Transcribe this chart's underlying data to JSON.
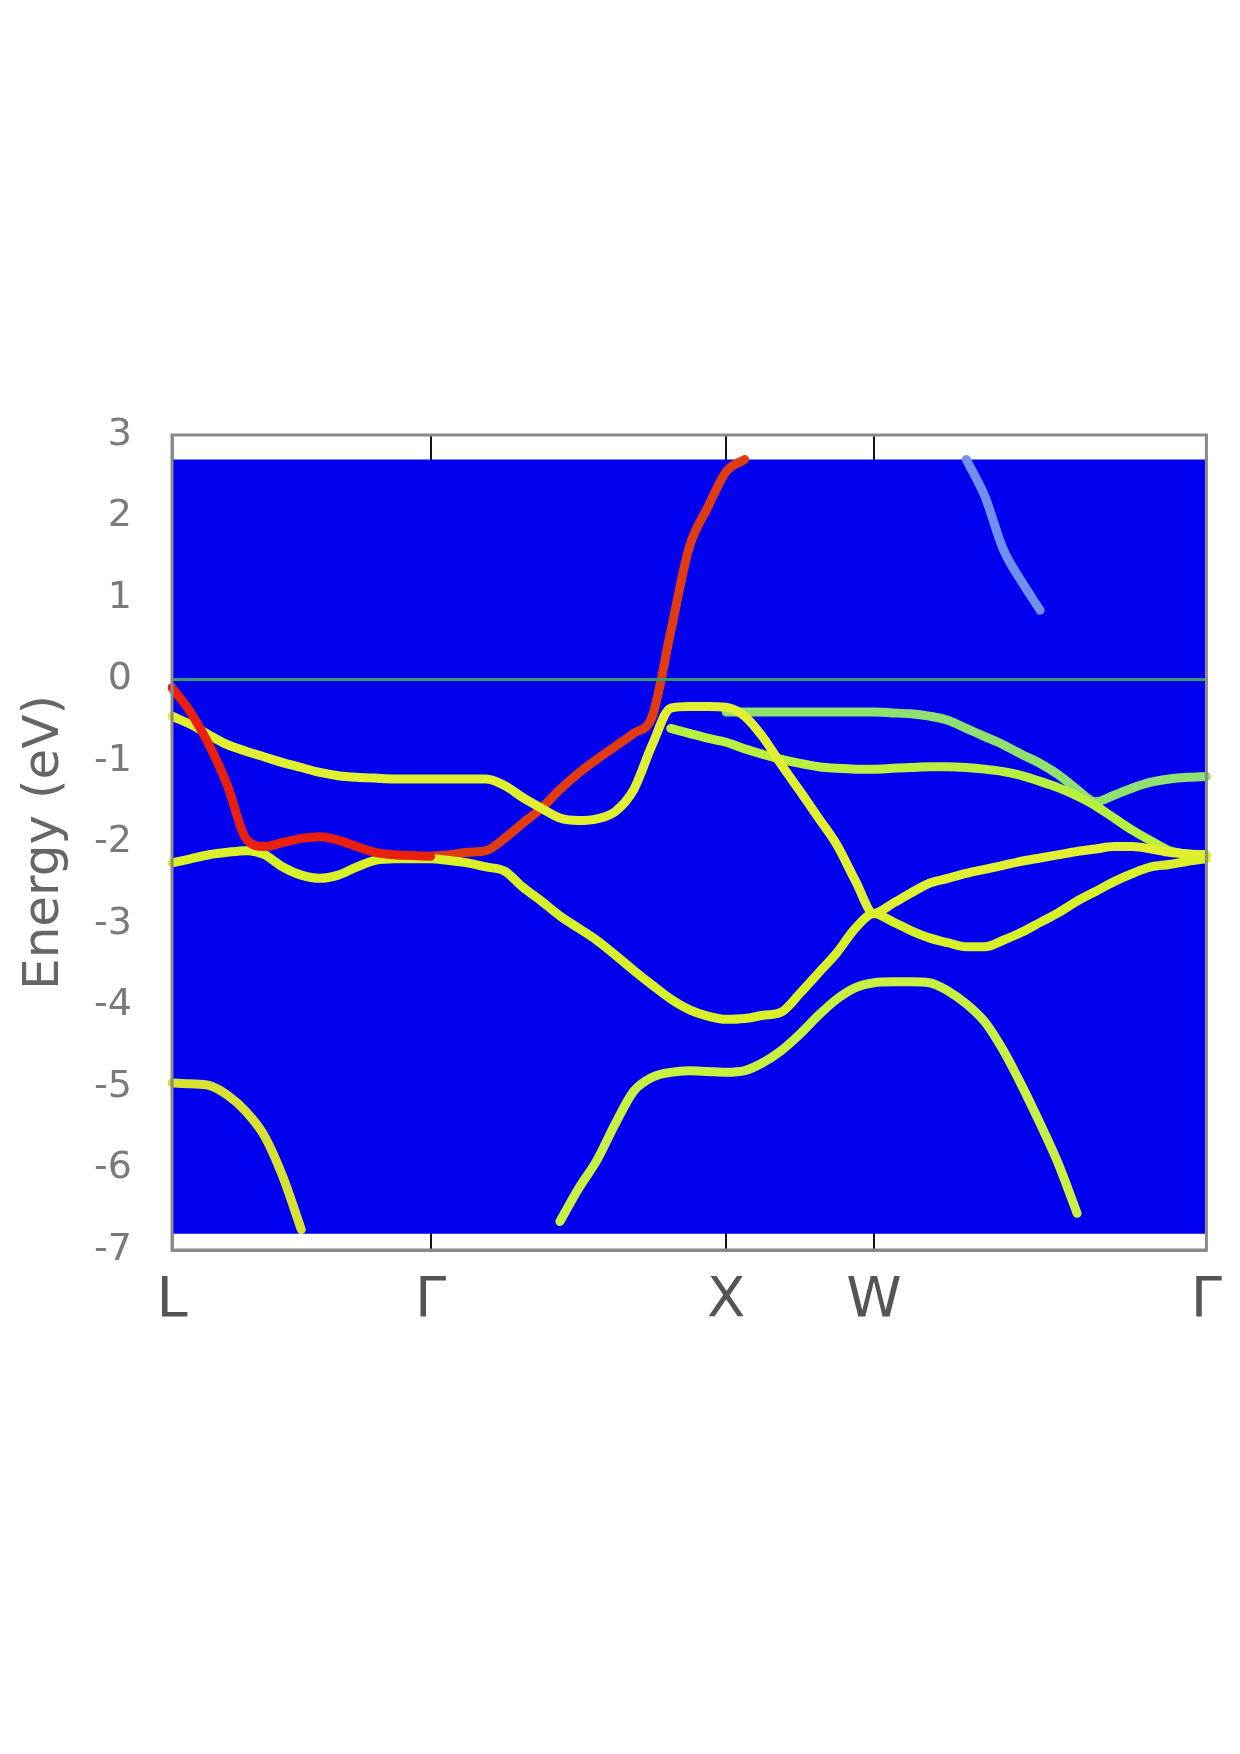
{
  "chart_data": {
    "type": "line",
    "ylabel": "Energy (eV)",
    "categories": [
      "L",
      null,
      null,
      null,
      null,
      null,
      null,
      null,
      null,
      null,
      null,
      null,
      null,
      null,
      "Γ",
      null,
      null,
      null,
      null,
      null,
      null,
      null,
      null,
      null,
      null,
      null,
      null,
      null,
      null,
      null,
      "X",
      null,
      null,
      null,
      null,
      null,
      null,
      null,
      "W",
      null,
      null,
      null,
      null,
      null,
      null,
      null,
      null,
      null,
      null,
      null,
      null,
      null,
      null,
      null,
      null,
      null,
      "Γ"
    ],
    "ylim": [
      -7,
      3
    ],
    "yticks": [
      -7,
      -6,
      -5,
      -4,
      -3,
      -2,
      -1,
      0,
      1,
      2,
      3
    ],
    "grid": "x",
    "marker": "none",
    "bands": [
      {
        "axis": "y",
        "from": -6.8,
        "to": 2.7,
        "color": "#0000ee"
      }
    ],
    "ref_lines": [
      {
        "axis": "y",
        "value": 0,
        "color": "#3a9a6a"
      }
    ],
    "series": [
      {
        "color": "#e8200c",
        "values": [
          -0.1,
          -0.4,
          -0.8,
          -1.3,
          -1.95,
          -2.05,
          -2.0,
          -1.95,
          -1.93,
          -1.97,
          -2.05,
          -2.12,
          -2.15,
          -2.16,
          -2.17,
          null,
          null,
          null,
          null,
          null,
          null,
          null,
          null,
          null,
          null,
          null,
          null,
          null,
          null,
          null,
          null,
          null,
          null,
          null,
          null,
          null,
          null,
          null,
          null,
          null,
          null,
          null,
          null,
          null,
          null,
          null,
          null,
          null,
          null,
          null,
          null,
          null,
          null,
          null,
          null,
          null,
          null
        ]
      },
      {
        "color": "#d8f028",
        "values": [
          -2.25,
          -2.2,
          -2.15,
          -2.12,
          -2.1,
          -2.15,
          -2.3,
          -2.4,
          -2.44,
          -2.4,
          -2.3,
          -2.22,
          -2.2,
          -2.2,
          -2.2,
          -2.22,
          -2.25,
          -2.3,
          -2.35,
          -2.55,
          -2.72,
          -2.9,
          -3.05,
          -3.2,
          -3.38,
          -3.57,
          -3.75,
          -3.92,
          -4.05,
          -4.13,
          -4.17,
          -4.16,
          -4.12,
          -4.08,
          -3.85,
          -3.6,
          -3.35,
          -3.05,
          -2.87,
          -2.97,
          -3.08,
          -3.17,
          -3.23,
          -3.28,
          -3.28,
          -3.2,
          -3.1,
          -2.98,
          -2.86,
          -2.72,
          -2.6,
          -2.48,
          -2.38,
          -2.3,
          -2.27,
          -2.23,
          -2.2
        ]
      },
      {
        "color": "#e0f030",
        "values": [
          -0.45,
          -0.55,
          -0.68,
          -0.8,
          -0.88,
          -0.95,
          -1.02,
          -1.08,
          -1.14,
          -1.18,
          -1.2,
          -1.21,
          -1.22,
          -1.22,
          -1.22,
          -1.22,
          -1.22,
          -1.22,
          -1.3,
          -1.45,
          -1.58,
          -1.7,
          -1.73,
          -1.71,
          -1.62,
          -1.35,
          -0.8,
          -0.35,
          -0.33,
          -0.33,
          -0.34,
          -0.45,
          -0.71,
          -1.05,
          -1.37,
          -1.7,
          -2.03,
          -2.47,
          -2.87,
          -2.75,
          -2.62,
          -2.5,
          -2.44,
          -2.38,
          -2.33,
          -2.28,
          -2.23,
          -2.19,
          -2.15,
          -2.11,
          -2.08,
          -2.05,
          -2.05,
          -2.08,
          -2.12,
          -2.14,
          -2.15
        ]
      },
      {
        "color": "#e03c10",
        "values": [
          null,
          null,
          null,
          null,
          null,
          null,
          null,
          null,
          null,
          null,
          null,
          null,
          null,
          null,
          -2.17,
          -2.15,
          -2.12,
          -2.1,
          -1.95,
          -1.76,
          -1.58,
          -1.35,
          -1.15,
          -0.98,
          -0.82,
          -0.66,
          -0.45,
          0.59,
          1.62,
          2.11,
          2.55,
          2.7,
          null,
          null,
          null,
          null,
          null,
          null,
          null,
          null,
          null,
          null,
          null,
          null,
          null,
          null,
          null,
          null,
          null,
          null,
          null,
          null,
          null,
          null,
          null,
          null,
          null
        ]
      },
      {
        "color": "#b8f040",
        "values": [
          null,
          null,
          null,
          null,
          null,
          null,
          null,
          null,
          null,
          null,
          null,
          null,
          null,
          null,
          null,
          null,
          null,
          null,
          null,
          null,
          null,
          null,
          null,
          null,
          null,
          null,
          null,
          -0.6,
          -0.66,
          -0.72,
          -0.77,
          -0.85,
          -0.92,
          -0.98,
          -1.03,
          -1.07,
          -1.09,
          -1.1,
          -1.1,
          -1.09,
          -1.08,
          -1.07,
          -1.07,
          -1.08,
          -1.1,
          -1.13,
          -1.18,
          -1.25,
          -1.33,
          -1.43,
          -1.55,
          -1.7,
          -1.85,
          -1.98,
          -2.1,
          -2.14,
          -2.15
        ]
      },
      {
        "color": "#90e070",
        "values": [
          null,
          null,
          null,
          null,
          null,
          null,
          null,
          null,
          null,
          null,
          null,
          null,
          null,
          null,
          null,
          null,
          null,
          null,
          null,
          null,
          null,
          null,
          null,
          null,
          null,
          null,
          null,
          null,
          null,
          null,
          -0.4,
          -0.4,
          -0.4,
          -0.4,
          -0.4,
          -0.4,
          -0.4,
          -0.4,
          -0.4,
          -0.41,
          -0.42,
          -0.45,
          -0.5,
          -0.6,
          -0.7,
          -0.8,
          -0.92,
          -1.03,
          -1.17,
          -1.35,
          -1.5,
          -1.42,
          -1.33,
          -1.26,
          -1.22,
          -1.2,
          -1.19
        ]
      },
      {
        "color": "#c8f040",
        "values": [
          null,
          null,
          null,
          null,
          null,
          null,
          null,
          null,
          null,
          null,
          null,
          null,
          null,
          null,
          null,
          null,
          null,
          null,
          null,
          null,
          null,
          -6.65,
          -6.25,
          -5.9,
          -5.45,
          -5.05,
          -4.88,
          -4.82,
          -4.8,
          -4.81,
          -4.82,
          -4.8,
          -4.7,
          -4.55,
          -4.35,
          -4.12,
          -3.92,
          -3.78,
          -3.72,
          -3.71,
          -3.71,
          -3.72,
          -3.82,
          -3.98,
          -4.2,
          -4.55,
          -4.98,
          -5.45,
          -5.95,
          -6.55,
          null,
          null,
          null,
          null,
          null,
          null,
          null
        ]
      },
      {
        "color": "#d8e030",
        "values": [
          -4.95,
          -4.96,
          -4.98,
          -5.1,
          -5.3,
          -5.6,
          -6.1,
          -6.75,
          null,
          null,
          null,
          null,
          null,
          null,
          null,
          null,
          null,
          null,
          null,
          null,
          null,
          null,
          null,
          null,
          null,
          null,
          null,
          null,
          null,
          null,
          null,
          null,
          null,
          null,
          null,
          null,
          null,
          null,
          null,
          null,
          null,
          null,
          null,
          null,
          null,
          null,
          null,
          null,
          null,
          null,
          null,
          null,
          null,
          null,
          null,
          null,
          null
        ]
      },
      {
        "color": "#7090f0",
        "values": [
          null,
          null,
          null,
          null,
          null,
          null,
          null,
          null,
          null,
          null,
          null,
          null,
          null,
          null,
          null,
          null,
          null,
          null,
          null,
          null,
          null,
          null,
          null,
          null,
          null,
          null,
          null,
          null,
          null,
          null,
          null,
          null,
          null,
          null,
          null,
          null,
          null,
          null,
          null,
          null,
          null,
          null,
          null,
          2.7,
          2.25,
          1.6,
          1.2,
          0.85,
          null,
          null,
          null,
          null,
          null,
          null,
          null,
          null,
          null
        ]
      }
    ]
  }
}
